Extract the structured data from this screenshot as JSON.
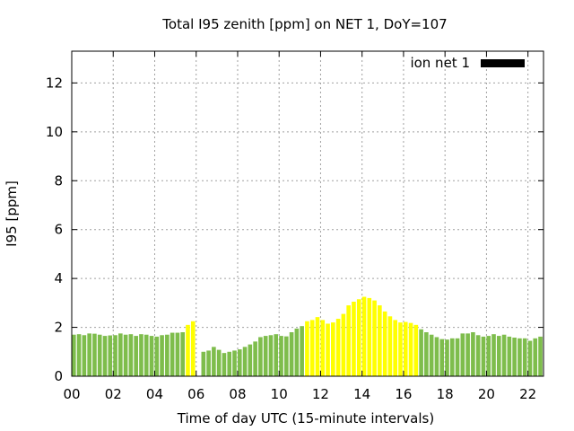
{
  "chart_data": {
    "type": "bar",
    "title": "Total I95 zenith [ppm] on NET 1, DoY=107",
    "xlabel": "Time of day UTC (15-minute intervals)",
    "ylabel": "I95 [ppm]",
    "xlim": [
      0,
      22.75
    ],
    "ylim": [
      0,
      13.3
    ],
    "x_ticks": [
      "00",
      "02",
      "04",
      "06",
      "08",
      "10",
      "12",
      "14",
      "16",
      "18",
      "20",
      "22"
    ],
    "y_ticks": [
      "0",
      "2",
      "4",
      "6",
      "8",
      "10",
      "12"
    ],
    "grid": true,
    "legend": {
      "label": "ion net 1",
      "position": "top-right",
      "color": "#000000"
    },
    "bar_width_hours": 0.2,
    "colors": {
      "normal": "#7ebd4c",
      "elevated": "#ffff00"
    },
    "series": [
      {
        "name": "ion net 1",
        "x": [
          0.0,
          0.25,
          0.5,
          0.75,
          1.0,
          1.25,
          1.5,
          1.75,
          2.0,
          2.25,
          2.5,
          2.75,
          3.0,
          3.25,
          3.5,
          3.75,
          4.0,
          4.25,
          4.5,
          4.75,
          5.0,
          5.25,
          5.5,
          5.75,
          6.25,
          6.5,
          6.75,
          7.0,
          7.25,
          7.5,
          7.75,
          8.0,
          8.25,
          8.5,
          8.75,
          9.0,
          9.25,
          9.5,
          9.75,
          10.0,
          10.25,
          10.5,
          10.75,
          11.0,
          11.25,
          11.5,
          11.75,
          12.0,
          12.25,
          12.5,
          12.75,
          13.0,
          13.25,
          13.5,
          13.75,
          14.0,
          14.25,
          14.5,
          14.75,
          15.0,
          15.25,
          15.5,
          15.75,
          16.0,
          16.25,
          16.5,
          16.75,
          17.0,
          17.25,
          17.5,
          17.75,
          18.0,
          18.25,
          18.5,
          18.75,
          19.0,
          19.25,
          19.5,
          19.75,
          20.0,
          20.25,
          20.5,
          20.75,
          21.0,
          21.25,
          21.5,
          21.75,
          22.0,
          22.25,
          22.5
        ],
        "values": [
          1.7,
          1.72,
          1.68,
          1.75,
          1.74,
          1.7,
          1.65,
          1.67,
          1.68,
          1.75,
          1.7,
          1.72,
          1.65,
          1.72,
          1.7,
          1.65,
          1.62,
          1.68,
          1.7,
          1.78,
          1.78,
          1.8,
          2.1,
          2.25,
          1.0,
          1.05,
          1.2,
          1.08,
          0.95,
          1.0,
          1.05,
          1.1,
          1.2,
          1.3,
          1.42,
          1.6,
          1.65,
          1.68,
          1.72,
          1.65,
          1.63,
          1.8,
          1.95,
          2.05,
          2.25,
          2.3,
          2.42,
          2.3,
          2.15,
          2.2,
          2.35,
          2.55,
          2.9,
          3.05,
          3.15,
          3.25,
          3.2,
          3.1,
          2.9,
          2.65,
          2.45,
          2.3,
          2.2,
          2.22,
          2.18,
          2.1,
          1.92,
          1.8,
          1.7,
          1.6,
          1.52,
          1.5,
          1.55,
          1.55,
          1.75,
          1.75,
          1.8,
          1.68,
          1.62,
          1.65,
          1.72,
          1.65,
          1.7,
          1.62,
          1.58,
          1.55,
          1.55,
          1.45,
          1.55,
          1.62
        ],
        "flags": [
          "normal",
          "normal",
          "normal",
          "normal",
          "normal",
          "normal",
          "normal",
          "normal",
          "normal",
          "normal",
          "normal",
          "normal",
          "normal",
          "normal",
          "normal",
          "normal",
          "normal",
          "normal",
          "normal",
          "normal",
          "normal",
          "normal",
          "elevated",
          "elevated",
          "normal",
          "normal",
          "normal",
          "normal",
          "normal",
          "normal",
          "normal",
          "normal",
          "normal",
          "normal",
          "normal",
          "normal",
          "normal",
          "normal",
          "normal",
          "normal",
          "normal",
          "normal",
          "normal",
          "normal",
          "elevated",
          "elevated",
          "elevated",
          "elevated",
          "elevated",
          "elevated",
          "elevated",
          "elevated",
          "elevated",
          "elevated",
          "elevated",
          "elevated",
          "elevated",
          "elevated",
          "elevated",
          "elevated",
          "elevated",
          "elevated",
          "elevated",
          "elevated",
          "elevated",
          "elevated",
          "normal",
          "normal",
          "normal",
          "normal",
          "normal",
          "normal",
          "normal",
          "normal",
          "normal",
          "normal",
          "normal",
          "normal",
          "normal",
          "normal",
          "normal",
          "normal",
          "normal",
          "normal",
          "normal",
          "normal",
          "normal",
          "normal",
          "normal",
          "normal"
        ]
      }
    ]
  }
}
